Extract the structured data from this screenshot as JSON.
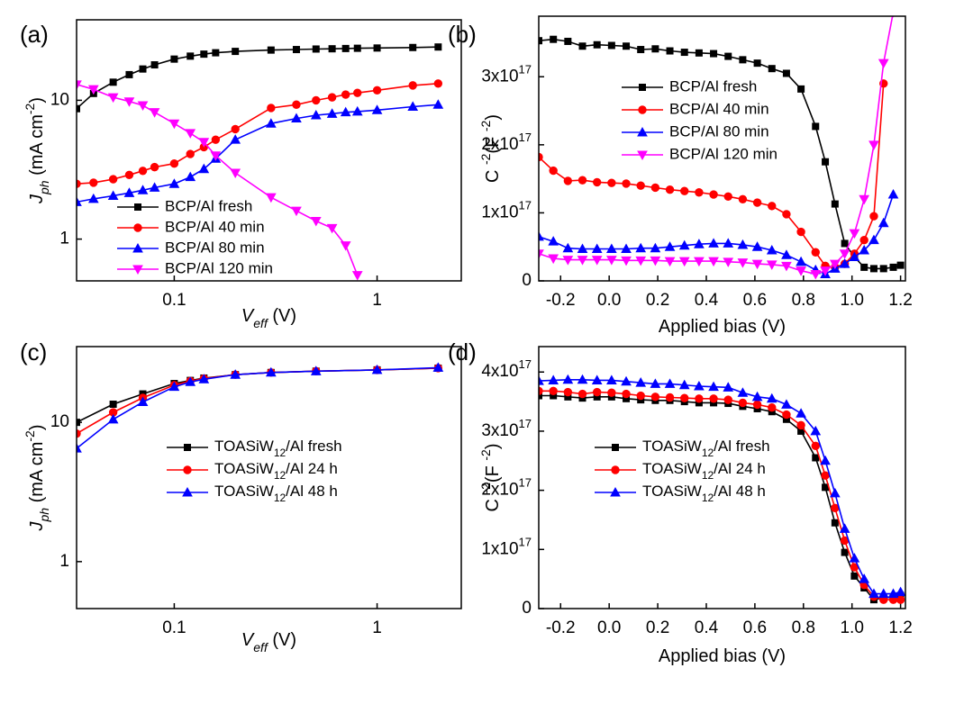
{
  "chart_data": [
    {
      "type": "line",
      "panel_label": "(a)",
      "xlabel": [
        {
          "text": "V",
          "style": "italic"
        },
        {
          "text": "eff",
          "script": "sub",
          "style": "italic"
        },
        {
          "text": " (V)"
        }
      ],
      "ylabel": [
        {
          "text": "J",
          "style": "italic"
        },
        {
          "text": "ph",
          "script": "sub",
          "style": "italic"
        },
        {
          "text": " (mA cm"
        },
        {
          "text": "-2",
          "script": "sup"
        },
        {
          "text": ")"
        }
      ],
      "xscale": "log",
      "yscale": "log",
      "xlim": [
        0.033,
        2.6
      ],
      "ylim": [
        0.5,
        38
      ],
      "xticks": [
        0.1,
        1
      ],
      "yticks": [
        1,
        10
      ],
      "x": [
        0.033,
        0.04,
        0.05,
        0.06,
        0.07,
        0.08,
        0.1,
        0.12,
        0.14,
        0.16,
        0.2,
        0.3,
        0.4,
        0.5,
        0.6,
        0.7,
        0.8,
        1,
        1.5,
        2
      ],
      "series": [
        {
          "name": "BCP/Al fresh",
          "color": "#000000",
          "marker": "square",
          "values": [
            8.7,
            11.2,
            13.5,
            15.3,
            16.8,
            18,
            19.8,
            20.8,
            21.5,
            22,
            22.5,
            23,
            23.2,
            23.4,
            23.5,
            23.6,
            23.7,
            23.8,
            24,
            24.2
          ]
        },
        {
          "name": "BCP/Al 40 min",
          "color": "#ff0000",
          "marker": "circle",
          "values": [
            2.5,
            2.55,
            2.7,
            2.9,
            3.1,
            3.3,
            3.5,
            4.1,
            4.6,
            5.2,
            6.2,
            8.8,
            9.3,
            10,
            10.5,
            11,
            11.3,
            11.8,
            12.8,
            13.2
          ]
        },
        {
          "name": "BCP/Al 80 min",
          "color": "#0000ff",
          "marker": "triangle-up",
          "values": [
            1.85,
            1.95,
            2.05,
            2.15,
            2.25,
            2.35,
            2.5,
            2.8,
            3.2,
            3.8,
            5.2,
            6.8,
            7.4,
            7.8,
            8.0,
            8.2,
            8.3,
            8.5,
            9,
            9.3
          ]
        },
        {
          "name": "BCP/Al 120 min",
          "color": "#ff00ff",
          "marker": "triangle-down",
          "values": [
            13,
            12,
            10.5,
            9.8,
            9.2,
            8.2,
            6.8,
            5.8,
            5,
            4,
            3,
            2,
            1.6,
            1.35,
            1.2,
            0.9,
            0.55,
            null,
            null,
            null
          ]
        }
      ]
    },
    {
      "type": "line",
      "panel_label": "(b)",
      "xlabel": [
        {
          "text": "Applied bias (V)"
        }
      ],
      "ylabel": [
        {
          "text": "C "
        },
        {
          "text": "-2",
          "script": "sup"
        },
        {
          "text": "(F "
        },
        {
          "text": "-2",
          "script": "sup"
        },
        {
          "text": ")"
        }
      ],
      "xscale": "linear",
      "yscale": "linear",
      "xlim": [
        -0.29,
        1.22
      ],
      "ylim": [
        0,
        3.89e+17
      ],
      "xticks": [
        -0.2,
        {
          "value": 0,
          "label": "0.0"
        },
        0.2,
        0.4,
        0.6,
        0.8,
        {
          "value": 1,
          "label": "1.0"
        },
        1.2
      ],
      "yticks": [
        0,
        {
          "value": 1e+17,
          "label": "1x10",
          "sup": "17"
        },
        {
          "value": 2e+17,
          "label": "2x10",
          "sup": "17"
        },
        {
          "value": 3e+17,
          "label": "3x10",
          "sup": "17"
        }
      ],
      "x": [
        -0.29,
        -0.23,
        -0.17,
        -0.11,
        -0.05,
        0.01,
        0.07,
        0.13,
        0.19,
        0.25,
        0.31,
        0.37,
        0.43,
        0.49,
        0.55,
        0.61,
        0.67,
        0.73,
        0.79,
        0.85,
        0.89,
        0.93,
        0.97,
        1.01,
        1.05,
        1.09,
        1.13,
        1.17,
        1.2
      ],
      "series": [
        {
          "name": "BCP/Al fresh",
          "color": "#000000",
          "marker": "square",
          "values": [
            3.53e+17,
            3.55e+17,
            3.52e+17,
            3.45e+17,
            3.47e+17,
            3.46e+17,
            3.45e+17,
            3.4e+17,
            3.41e+17,
            3.38e+17,
            3.36e+17,
            3.35e+17,
            3.34e+17,
            3.3e+17,
            3.25e+17,
            3.2e+17,
            3.12e+17,
            3.05e+17,
            2.82e+17,
            2.27e+17,
            1.75e+17,
            1.13e+17,
            5.5e+16,
            3.5e+16,
            2e+16,
            1.8e+16,
            1.8e+16,
            2e+16,
            2.3e+16
          ]
        },
        {
          "name": "BCP/Al 40 min",
          "color": "#ff0000",
          "marker": "circle",
          "values": [
            1.82e+17,
            1.62e+17,
            1.47e+17,
            1.48e+17,
            1.45e+17,
            1.44e+17,
            1.43e+17,
            1.4e+17,
            1.37e+17,
            1.34e+17,
            1.32e+17,
            1.3e+17,
            1.27e+17,
            1.24e+17,
            1.2e+17,
            1.15e+17,
            1.1e+17,
            9.8e+16,
            7.2e+16,
            4.2e+16,
            2.2e+16,
            2e+16,
            2.5e+16,
            4e+16,
            6e+16,
            9.5e+16,
            2.9e+17,
            null,
            null
          ]
        },
        {
          "name": "BCP/Al 80 min",
          "color": "#0000ff",
          "marker": "triangle-up",
          "values": [
            6.5e+16,
            5.8e+16,
            4.8e+16,
            4.7e+16,
            4.7e+16,
            4.7e+16,
            4.7e+16,
            4.8e+16,
            4.8e+16,
            5e+16,
            5.2e+16,
            5.4e+16,
            5.5e+16,
            5.5e+16,
            5.3e+16,
            5e+16,
            4.5e+16,
            3.8e+16,
            2.8e+16,
            1.6e+16,
            1e+16,
            1.8e+16,
            2.5e+16,
            3.5e+16,
            4.5e+16,
            6e+16,
            8.5e+16,
            1.27e+17,
            null
          ]
        },
        {
          "name": "BCP/Al 120 min",
          "color": "#ff00ff",
          "marker": "triangle-down",
          "values": [
            4e+16,
            3.3e+16,
            3.1e+16,
            3.1e+16,
            3.1e+16,
            3.1e+16,
            3e+16,
            3e+16,
            3e+16,
            2.9e+16,
            2.9e+16,
            2.9e+16,
            2.9e+16,
            2.8e+16,
            2.7e+16,
            2.5e+16,
            2.4e+16,
            2.2e+16,
            1.5e+16,
            1e+16,
            1.5e+16,
            2.5e+16,
            4e+16,
            7e+16,
            1.2e+17,
            2e+17,
            3.2e+17,
            3.95e+17,
            null
          ]
        }
      ]
    },
    {
      "type": "line",
      "panel_label": "(c)",
      "xlabel": [
        {
          "text": "V",
          "style": "italic"
        },
        {
          "text": "eff",
          "script": "sub",
          "style": "italic"
        },
        {
          "text": " (V)"
        }
      ],
      "ylabel": [
        {
          "text": "J",
          "style": "italic"
        },
        {
          "text": "ph",
          "script": "sub",
          "style": "italic"
        },
        {
          "text": " (mA cm"
        },
        {
          "text": "-2",
          "script": "sup"
        },
        {
          "text": ")"
        }
      ],
      "xscale": "log",
      "yscale": "log",
      "xlim": [
        0.033,
        2.6
      ],
      "ylim": [
        0.46,
        35
      ],
      "xticks": [
        0.1,
        1
      ],
      "yticks": [
        1,
        10
      ],
      "x": [
        0.033,
        0.05,
        0.07,
        0.1,
        0.12,
        0.14,
        0.2,
        0.3,
        0.5,
        1,
        2
      ],
      "series": [
        {
          "name": "TOASiW12/Al fresh",
          "color": "#000000",
          "marker": "square",
          "values": [
            10,
            13.5,
            16,
            19,
            20,
            20.8,
            22,
            22.8,
            23.3,
            23.8,
            24.5
          ]
        },
        {
          "name": "TOASiW12/Al 24 h",
          "color": "#ff0000",
          "marker": "circle",
          "values": [
            8.3,
            11.8,
            15,
            18.5,
            19.8,
            20.6,
            22,
            22.8,
            23.3,
            23.8,
            24.5
          ]
        },
        {
          "name": "TOASiW12/Al 48 h",
          "color": "#0000ff",
          "marker": "triangle-up",
          "values": [
            6.5,
            10.5,
            14,
            18,
            19.5,
            20.4,
            22,
            22.8,
            23.3,
            23.8,
            24.7
          ]
        }
      ]
    },
    {
      "type": "line",
      "panel_label": "(d)",
      "xlabel": [
        {
          "text": "Applied bias (V)"
        }
      ],
      "ylabel": [
        {
          "text": "C "
        },
        {
          "text": "-2",
          "script": "sup"
        },
        {
          "text": "(F "
        },
        {
          "text": "-2",
          "script": "sup"
        },
        {
          "text": ")"
        }
      ],
      "xscale": "linear",
      "yscale": "linear",
      "xlim": [
        -0.29,
        1.22
      ],
      "ylim": [
        0,
        4.43e+17
      ],
      "xticks": [
        -0.2,
        {
          "value": 0,
          "label": "0.0"
        },
        0.2,
        0.4,
        0.6,
        0.8,
        {
          "value": 1,
          "label": "1.0"
        },
        1.2
      ],
      "yticks": [
        0,
        {
          "value": 1e+17,
          "label": "1x10",
          "sup": "17"
        },
        {
          "value": 2e+17,
          "label": "2x10",
          "sup": "17"
        },
        {
          "value": 3e+17,
          "label": "3x10",
          "sup": "17"
        },
        {
          "value": 4e+17,
          "label": "4x10",
          "sup": "17"
        }
      ],
      "x": [
        -0.29,
        -0.23,
        -0.17,
        -0.11,
        -0.05,
        0.01,
        0.07,
        0.13,
        0.19,
        0.25,
        0.31,
        0.37,
        0.43,
        0.49,
        0.55,
        0.61,
        0.67,
        0.73,
        0.79,
        0.85,
        0.89,
        0.93,
        0.97,
        1.01,
        1.05,
        1.09,
        1.13,
        1.17,
        1.2
      ],
      "series": [
        {
          "name": "TOASiW12/Al fresh",
          "color": "#000000",
          "marker": "square",
          "values": [
            3.6e+17,
            3.6e+17,
            3.58e+17,
            3.56e+17,
            3.58e+17,
            3.58e+17,
            3.55e+17,
            3.53e+17,
            3.52e+17,
            3.52e+17,
            3.5e+17,
            3.48e+17,
            3.48e+17,
            3.47e+17,
            3.42e+17,
            3.38e+17,
            3.33e+17,
            3.2e+17,
            3e+17,
            2.55e+17,
            2.05e+17,
            1.45e+17,
            9.5e+16,
            5.5e+16,
            3.5e+16,
            1.5e+16,
            1.8e+16,
            2e+16,
            2.2e+16
          ]
        },
        {
          "name": "TOASiW12/Al 24 h",
          "color": "#ff0000",
          "marker": "circle",
          "values": [
            3.68e+17,
            3.68e+17,
            3.66e+17,
            3.63e+17,
            3.66e+17,
            3.65e+17,
            3.63e+17,
            3.6e+17,
            3.58e+17,
            3.57e+17,
            3.56e+17,
            3.55e+17,
            3.55e+17,
            3.53e+17,
            3.48e+17,
            3.45e+17,
            3.4e+17,
            3.28e+17,
            3.1e+17,
            2.75e+17,
            2.25e+17,
            1.7e+17,
            1.15e+17,
            7e+16,
            4e+16,
            2e+16,
            1.5e+16,
            1.5e+16,
            1.5e+16
          ]
        },
        {
          "name": "TOASiW12/Al 48 h",
          "color": "#0000ff",
          "marker": "triangle-up",
          "values": [
            3.85e+17,
            3.86e+17,
            3.87e+17,
            3.87e+17,
            3.86e+17,
            3.86e+17,
            3.84e+17,
            3.82e+17,
            3.8e+17,
            3.8e+17,
            3.78e+17,
            3.76e+17,
            3.75e+17,
            3.74e+17,
            3.65e+17,
            3.58e+17,
            3.55e+17,
            3.45e+17,
            3.3e+17,
            3e+17,
            2.5e+17,
            1.95e+17,
            1.35e+17,
            8.5e+16,
            5e+16,
            2.5e+16,
            2.5e+16,
            2.5e+16,
            2.8e+16
          ]
        }
      ]
    }
  ]
}
